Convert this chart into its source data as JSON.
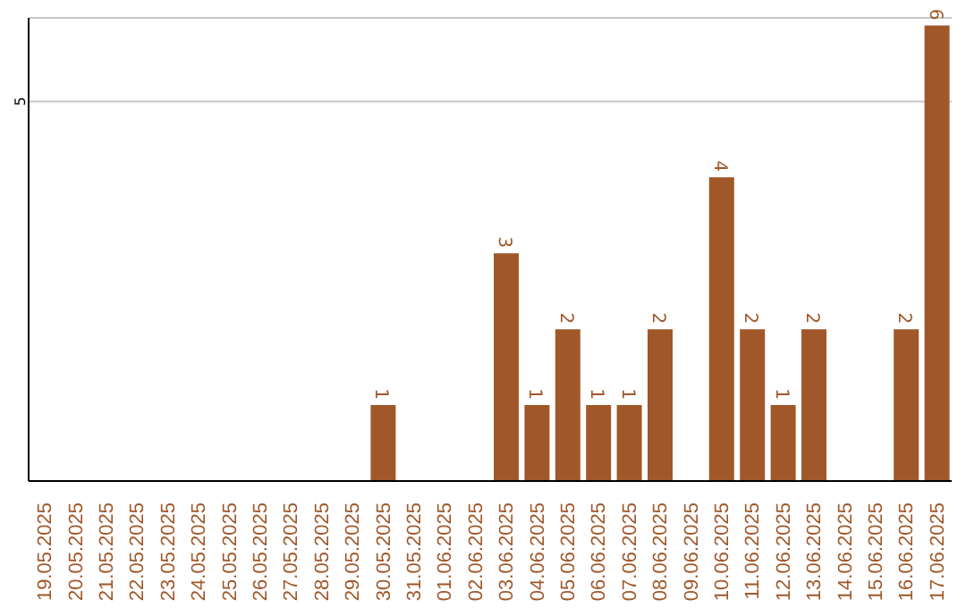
{
  "chart_data": {
    "type": "bar",
    "categories": [
      "19.05.2025",
      "20.05.2025",
      "21.05.2025",
      "22.05.2025",
      "23.05.2025",
      "24.05.2025",
      "25.05.2025",
      "26.05.2025",
      "27.05.2025",
      "28.05.2025",
      "29.05.2025",
      "30.05.2025",
      "31.05.2025",
      "01.06.2025",
      "02.06.2025",
      "03.06.2025",
      "04.06.2025",
      "05.06.2025",
      "06.06.2025",
      "07.06.2025",
      "08.06.2025",
      "09.06.2025",
      "10.06.2025",
      "11.06.2025",
      "12.06.2025",
      "13.06.2025",
      "14.06.2025",
      "15.06.2025",
      "16.06.2025",
      "17.06.2025"
    ],
    "values": [
      0,
      0,
      0,
      0,
      0,
      0,
      0,
      0,
      0,
      0,
      0,
      1,
      0,
      0,
      0,
      3,
      1,
      2,
      1,
      1,
      2,
      0,
      4,
      2,
      1,
      2,
      0,
      0,
      2,
      6
    ],
    "value_labels": [
      null,
      null,
      null,
      null,
      null,
      null,
      null,
      null,
      null,
      null,
      null,
      "1",
      null,
      null,
      null,
      "3",
      "1",
      "2",
      "1",
      "1",
      "2",
      null,
      "4",
      "2",
      "1",
      "2",
      null,
      null,
      "2",
      "6"
    ],
    "color": "#a0582a",
    "ylim": [
      0,
      6.1
    ],
    "yticks": [
      5
    ],
    "grid": "y"
  }
}
